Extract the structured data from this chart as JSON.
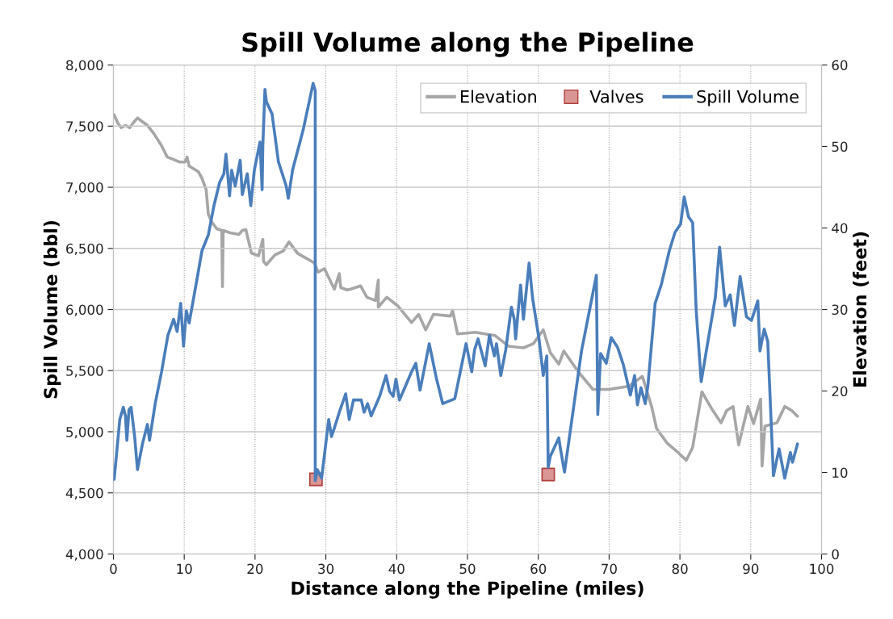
{
  "chart_data": {
    "type": "line",
    "title": "Spill Volume along the Pipeline",
    "xlabel": "Distance along the Pipeline (miles)",
    "ylabel": "Spill Volume (bbl)",
    "y2label": "Elevation (feet)",
    "xlim": [
      0,
      100
    ],
    "xticks": [
      0,
      10,
      20,
      30,
      40,
      50,
      60,
      70,
      80,
      90,
      100
    ],
    "ylim": [
      4000,
      8000
    ],
    "yticks": [
      {
        "value": 4000,
        "label": "4,000"
      },
      {
        "value": 4500,
        "label": "4,500"
      },
      {
        "value": 5000,
        "label": "5,000"
      },
      {
        "value": 5500,
        "label": "5,500"
      },
      {
        "value": 6000,
        "label": "6,000"
      },
      {
        "value": 6500,
        "label": "6,500"
      },
      {
        "value": 7000,
        "label": "7,000"
      },
      {
        "value": 7500,
        "label": "7,500"
      },
      {
        "value": 8000,
        "label": "8,000"
      }
    ],
    "y2lim": [
      0,
      60
    ],
    "y2ticks": [
      0,
      10,
      20,
      30,
      40,
      50,
      60
    ],
    "grid": true,
    "legend": "top right",
    "series": [
      {
        "name": "Elevation",
        "axis": "y2",
        "color": "#a6a6a6",
        "marker": "none",
        "x": [
          0.1,
          0.6,
          1.1,
          1.7,
          2.3,
          2.8,
          3.4,
          4.0,
          4.8,
          5.7,
          6.8,
          7.6,
          8.5,
          9.3,
          10.1,
          10.4,
          10.7,
          12.0,
          12.5,
          13.1,
          13.4,
          13.9,
          14.6,
          15.3,
          15.4,
          15.5,
          16.5,
          17.7,
          18.2,
          18.7,
          19.5,
          20.5,
          21.1,
          21.2,
          21.6,
          22.8,
          24.0,
          24.8,
          26.0,
          28.4,
          28.9,
          29.8,
          31.2,
          31.9,
          32.1,
          33.0,
          33.5,
          34.9,
          35.8,
          37.0,
          37.4,
          37.4,
          38.6,
          40.1,
          42.1,
          43.1,
          44.1,
          45.2,
          47.6,
          47.9,
          48.6,
          51.1,
          53.9,
          55.8,
          57.9,
          59.3,
          60.7,
          61.7,
          62.9,
          63.6,
          65.7,
          67.7,
          70.0,
          72.8,
          74.7,
          76.0,
          76.7,
          78.2,
          79.8,
          80.9,
          81.8,
          83.1,
          84.5,
          85.8,
          86.6,
          87.5,
          88.3,
          89.6,
          90.4,
          91.4,
          91.6,
          92.0,
          93.7,
          94.8,
          95.8,
          96.6
        ],
        "values": [
          53.9,
          52.9,
          52.3,
          52.6,
          52.3,
          52.9,
          53.5,
          53.1,
          52.6,
          51.6,
          50.1,
          48.7,
          48.4,
          48.1,
          48.1,
          48.7,
          47.6,
          46.9,
          46.1,
          44.7,
          41.7,
          40.7,
          39.9,
          39.7,
          32.8,
          39.7,
          39.4,
          39.2,
          39.7,
          39.8,
          36.9,
          36.6,
          38.6,
          35.9,
          35.5,
          36.7,
          37.2,
          38.3,
          36.9,
          35.7,
          34.6,
          35.0,
          32.5,
          34.4,
          32.7,
          32.4,
          32.5,
          32.9,
          31.5,
          31.1,
          33.6,
          30.3,
          31.5,
          30.5,
          28.4,
          29.4,
          27.5,
          29.4,
          29.2,
          29.9,
          27.0,
          27.2,
          26.8,
          25.5,
          25.3,
          25.8,
          27.5,
          24.7,
          23.3,
          24.9,
          22.3,
          20.2,
          20.2,
          20.6,
          21.8,
          18.1,
          15.4,
          13.6,
          12.4,
          11.5,
          13.1,
          19.9,
          17.8,
          16.1,
          17.6,
          18.1,
          13.4,
          18.1,
          16.0,
          19.0,
          10.8,
          15.7,
          16.1,
          18.1,
          17.6,
          16.9
        ]
      },
      {
        "name": "Valves",
        "type": "scatter",
        "axis": "y",
        "color": "#d99694",
        "marker": "square",
        "x": [
          28.6,
          61.4
        ],
        "values": [
          4610,
          4650
        ]
      },
      {
        "name": "Spill Volume",
        "axis": "y",
        "color": "#4a7ebb",
        "marker": "none",
        "x": [
          0.1,
          0.3,
          0.9,
          1.4,
          1.7,
          1.9,
          2.2,
          2.5,
          3.0,
          3.4,
          4.1,
          4.8,
          5.1,
          5.9,
          6.8,
          7.7,
          8.5,
          9.0,
          9.5,
          9.9,
          10.3,
          10.7,
          11.9,
          12.5,
          13.4,
          14.2,
          15.0,
          15.6,
          15.9,
          16.4,
          16.7,
          17.2,
          17.9,
          18.2,
          18.9,
          19.4,
          19.9,
          20.7,
          21.0,
          21.1,
          21.4,
          21.6,
          22.4,
          23.3,
          24.4,
          24.7,
          25.3,
          26.8,
          28.2,
          28.5,
          28.5,
          28.8,
          29.4,
          29.8,
          30.4,
          30.8,
          31.2,
          31.9,
          32.8,
          33.3,
          33.9,
          35.0,
          35.4,
          35.9,
          36.4,
          37.6,
          38.5,
          39.0,
          39.5,
          39.9,
          40.4,
          42.1,
          42.7,
          43.3,
          44.6,
          45.6,
          46.5,
          48.2,
          48.7,
          49.8,
          50.6,
          51.0,
          51.5,
          52.5,
          53.1,
          53.8,
          54.1,
          54.7,
          55.4,
          56.2,
          56.6,
          56.8,
          57.5,
          57.9,
          58.7,
          59.2,
          60.1,
          60.7,
          61.2,
          61.4,
          61.7,
          62.9,
          63.1,
          63.7,
          66.1,
          68.2,
          68.4,
          68.8,
          69.6,
          70.3,
          71.2,
          72.0,
          73.0,
          73.6,
          74.0,
          74.5,
          75.1,
          75.5,
          76.5,
          77.4,
          78.5,
          79.3,
          80.1,
          80.6,
          81.2,
          81.8,
          82.3,
          83.0,
          85.0,
          85.6,
          86.4,
          87.1,
          87.7,
          88.5,
          89.4,
          90.1,
          91.0,
          91.3,
          91.9,
          92.4,
          93.2,
          94.0,
          94.8,
          95.6,
          95.9,
          96.6
        ],
        "values": [
          4610,
          4730,
          5100,
          5200,
          5130,
          4930,
          5180,
          5200,
          4960,
          4690,
          4900,
          5060,
          4930,
          5230,
          5490,
          5790,
          5920,
          5820,
          6050,
          5700,
          5990,
          5890,
          6280,
          6480,
          6610,
          6850,
          7040,
          7110,
          7270,
          6930,
          7140,
          7010,
          7220,
          6940,
          7110,
          6850,
          7140,
          7370,
          6980,
          7340,
          7800,
          7700,
          7600,
          7210,
          7010,
          6910,
          7140,
          7470,
          7850,
          7790,
          4600,
          4690,
          4620,
          4810,
          5100,
          4960,
          5030,
          5160,
          5310,
          5100,
          5260,
          5260,
          5160,
          5230,
          5130,
          5290,
          5460,
          5330,
          5290,
          5430,
          5260,
          5490,
          5560,
          5340,
          5720,
          5440,
          5230,
          5270,
          5410,
          5720,
          5490,
          5670,
          5760,
          5540,
          5790,
          5620,
          5720,
          5460,
          5670,
          6020,
          5920,
          5760,
          6200,
          5920,
          6380,
          6090,
          5760,
          5460,
          5620,
          4710,
          4800,
          4950,
          4870,
          4670,
          5660,
          6280,
          5140,
          5640,
          5560,
          5770,
          5690,
          5550,
          5300,
          5460,
          5220,
          5360,
          5230,
          5390,
          6050,
          6210,
          6480,
          6630,
          6700,
          6920,
          6760,
          6710,
          5990,
          5410,
          6100,
          6510,
          6030,
          6120,
          5870,
          6270,
          5940,
          5910,
          6070,
          5660,
          5840,
          5740,
          4640,
          4860,
          4620,
          4830,
          4750,
          4900
        ]
      }
    ]
  }
}
